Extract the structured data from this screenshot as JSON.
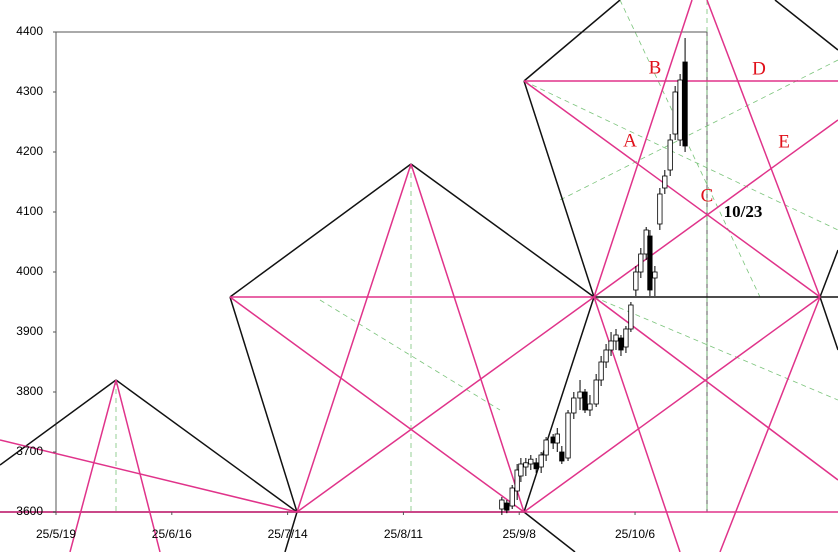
{
  "chart_data": {
    "type": "candlestick",
    "x": [
      107.8,
      109.0,
      110.3,
      111.5,
      112.4,
      113.6,
      114.8,
      116.1,
      117.3,
      118.5,
      120.2,
      121.2,
      122.3,
      123.8,
      125.2,
      126.7,
      127.9,
      129.1,
      130.6,
      131.8,
      133.0,
      134.2,
      135.4,
      136.6,
      137.8,
      139.0,
      140.2,
      141.4,
      142.7,
      143.6,
      144.8,
      146.0,
      147.2,
      148.5,
      149.7,
      150.9,
      152.1
    ],
    "open": [
      3605,
      3615,
      3610,
      3635,
      3660,
      3675,
      3680,
      3682,
      3675,
      3695,
      3725,
      3715,
      3700,
      3690,
      3765,
      3790,
      3800,
      3770,
      3780,
      3820,
      3850,
      3870,
      3885,
      3890,
      3875,
      3905,
      3970,
      4000,
      4030,
      4060,
      3990,
      4080,
      4140,
      4170,
      4230,
      4220,
      4350
    ],
    "high": [
      3625,
      3620,
      3645,
      3680,
      3690,
      3690,
      3695,
      3690,
      3700,
      3725,
      3730,
      3740,
      3710,
      3770,
      3800,
      3820,
      3805,
      3795,
      3830,
      3860,
      3880,
      3900,
      3905,
      3895,
      3910,
      3950,
      4010,
      4040,
      4075,
      4070,
      4010,
      4140,
      4170,
      4230,
      4310,
      4330,
      4390
    ],
    "low": [
      3595,
      3598,
      3605,
      3620,
      3650,
      3660,
      3670,
      3665,
      3665,
      3685,
      3705,
      3700,
      3680,
      3685,
      3755,
      3770,
      3765,
      3760,
      3775,
      3810,
      3840,
      3860,
      3870,
      3860,
      3865,
      3900,
      3960,
      3990,
      4020,
      3960,
      3960,
      4070,
      4130,
      4160,
      4220,
      4210,
      4200
    ],
    "close": [
      3620,
      3603,
      3640,
      3670,
      3680,
      3682,
      3688,
      3672,
      3695,
      3720,
      3715,
      3730,
      3685,
      3765,
      3790,
      3800,
      3770,
      3780,
      3820,
      3850,
      3870,
      3885,
      3895,
      3870,
      3905,
      3945,
      4000,
      4030,
      4070,
      3970,
      4000,
      4130,
      4160,
      4220,
      4300,
      4320,
      4210
    ],
    "xlim": [
      0,
      157.4
    ],
    "xticks": [
      {
        "value": 0,
        "label": "25/5/19"
      },
      {
        "value": 28,
        "label": "25/6/16"
      },
      {
        "value": 56,
        "label": "25/7/14"
      },
      {
        "value": 84,
        "label": "25/8/11"
      },
      {
        "value": 112,
        "label": "25/9/8"
      },
      {
        "value": 140,
        "label": "25/10/6"
      }
    ],
    "ylim": [
      3600,
      4400
    ],
    "yticks": [
      3600,
      3700,
      3800,
      3900,
      4000,
      4100,
      4200,
      4300,
      4400
    ],
    "annotations": [
      "A",
      "B",
      "C",
      "D",
      "E",
      "10/23"
    ]
  }
}
